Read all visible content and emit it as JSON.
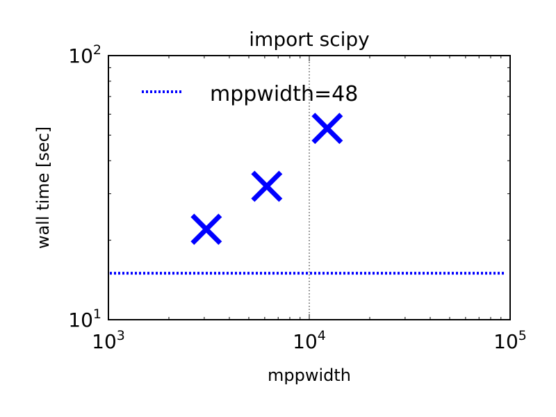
{
  "chart_data": {
    "type": "scatter",
    "title": "import scipy",
    "xlabel": "mppwidth",
    "ylabel": "wall time [sec]",
    "xscale": "log",
    "yscale": "log",
    "xlim": [
      1000,
      100000
    ],
    "ylim": [
      10,
      100
    ],
    "x_ticks": [
      {
        "value": 1000,
        "base": "10",
        "exp": "3"
      },
      {
        "value": 10000,
        "base": "10",
        "exp": "4"
      },
      {
        "value": 100000,
        "base": "10",
        "exp": "5"
      }
    ],
    "y_ticks": [
      {
        "value": 10,
        "base": "10",
        "exp": "1"
      },
      {
        "value": 100,
        "base": "10",
        "exp": "2"
      }
    ],
    "grid": false,
    "vertical_reference_line": {
      "x": 10000,
      "style": "dotted",
      "color": "#000000"
    },
    "series": [
      {
        "marker": "x",
        "color": "#0000ff",
        "x": [
          3072,
          6144,
          12288
        ],
        "y": [
          22,
          32,
          53
        ]
      }
    ],
    "reference_lines": [
      {
        "name": "mppwidth=48",
        "y": 15,
        "style": "dotted",
        "color": "#0000ff"
      }
    ],
    "legend": {
      "placement": "top-left",
      "entries": [
        "mppwidth=48"
      ]
    }
  }
}
